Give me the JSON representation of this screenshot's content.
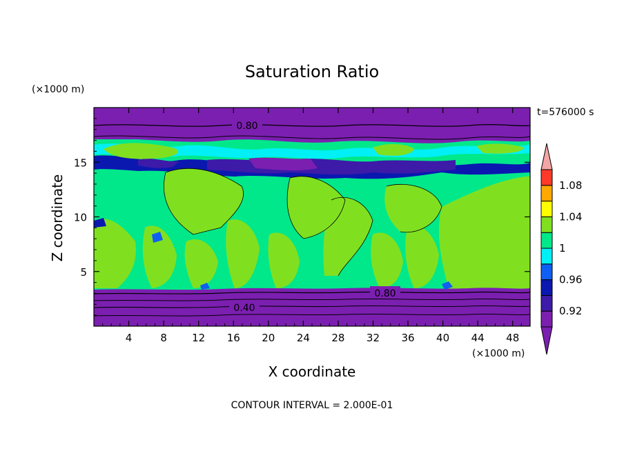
{
  "chart_data": {
    "type": "heatmap",
    "title": "Saturation Ratio",
    "xlabel": "X coordinate",
    "ylabel": "Z coordinate",
    "x_unit": "(×1000 m)",
    "y_unit": "(×1000 m)",
    "xlim": [
      0,
      50
    ],
    "ylim": [
      0,
      20
    ],
    "x_ticks": [
      4,
      8,
      12,
      16,
      20,
      24,
      28,
      32,
      36,
      40,
      44,
      48
    ],
    "y_ticks": [
      5,
      10,
      15
    ],
    "time_label": "t=576000 s",
    "footer": "CONTOUR INTERVAL = 2.000E-01",
    "contour_labels": [
      {
        "text": "0.80",
        "x": 18,
        "z": 18.3
      },
      {
        "text": "0.80",
        "x": 33,
        "z": 3.1
      },
      {
        "text": "0.40",
        "x": 17,
        "z": 1.7
      }
    ],
    "colorbar": {
      "levels": [
        0.9,
        0.92,
        0.94,
        0.96,
        0.98,
        1.0,
        1.02,
        1.04,
        1.06,
        1.08,
        1.1
      ],
      "tick_labels": [
        "0.92",
        "0.96",
        "1",
        "1.04",
        "1.08"
      ],
      "colors": [
        "#7b1fb0",
        "#3d1aa8",
        "#0a18b0",
        "#0f5ff2",
        "#00f0f5",
        "#00e88a",
        "#80e020",
        "#ffff00",
        "#ffa800",
        "#ff3a2a",
        "#f4a5a5"
      ],
      "under_color": "#7b1fb0",
      "over_color": "#f4a5a5"
    },
    "layers": [
      {
        "z_from": 0,
        "z_to": 3.3,
        "value": "<0.90"
      },
      {
        "z_from": 3.3,
        "z_to": 14.5,
        "value": "0.98–1.02 (mixed green / yellow-green)"
      },
      {
        "z_from": 14.5,
        "z_to": 15.5,
        "value": "0.90–0.94"
      },
      {
        "z_from": 15.5,
        "z_to": 17.5,
        "value": "0.98–1.02"
      },
      {
        "z_from": 17.5,
        "z_to": 20,
        "value": "<0.90"
      }
    ]
  }
}
